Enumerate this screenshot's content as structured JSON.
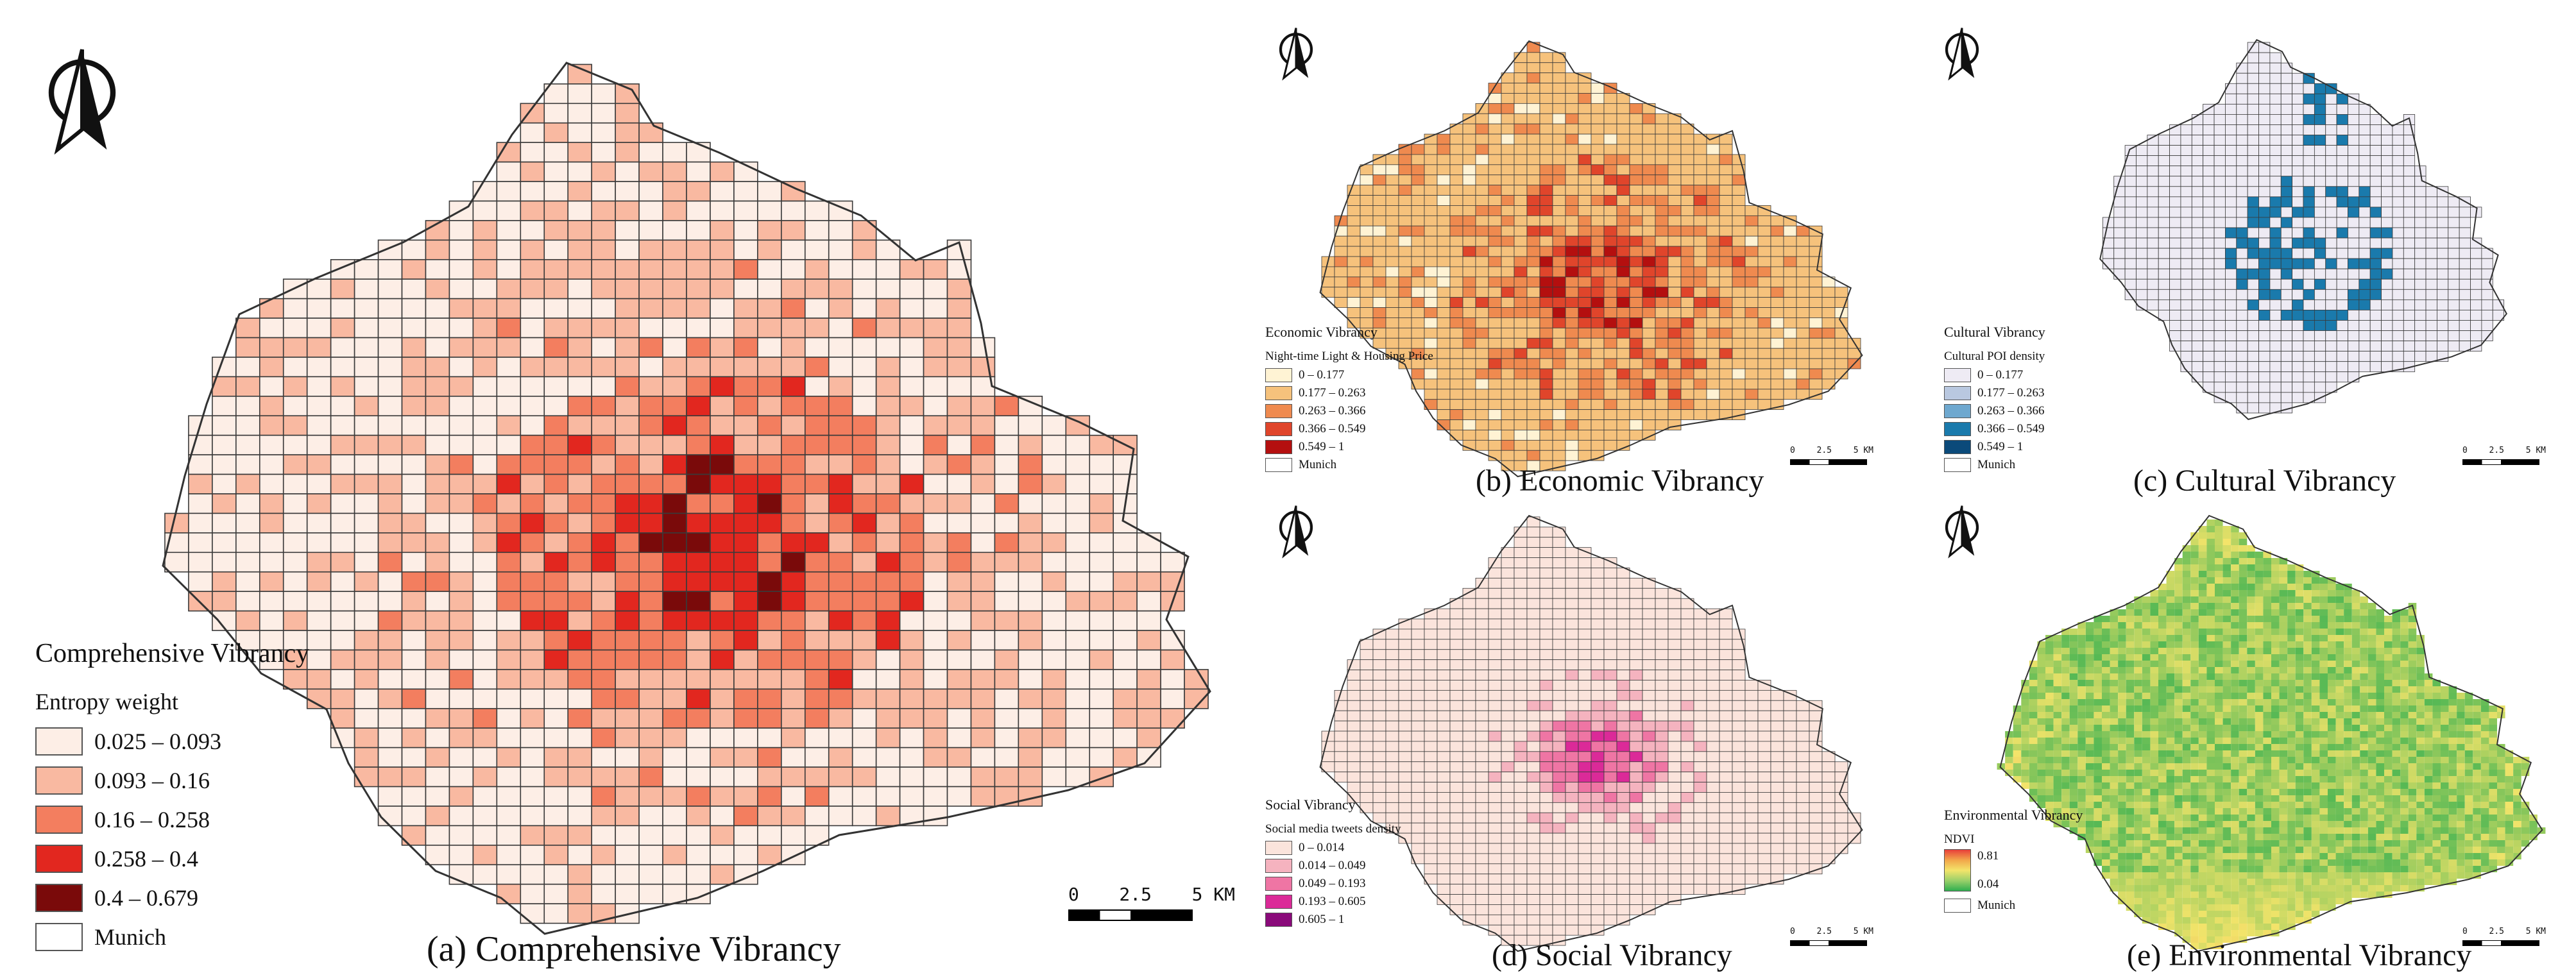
{
  "panels": {
    "a": {
      "caption": "(a) Comprehensive Vibrancy",
      "legend_title": "Comprehensive Vibrancy",
      "legend_subtitle": "Entropy weight",
      "classes": [
        {
          "label": "0.025 – 0.093",
          "color": "#fdeee6"
        },
        {
          "label": "0.093 – 0.16",
          "color": "#f9b9a1"
        },
        {
          "label": "0.16 – 0.258",
          "color": "#f37e5f"
        },
        {
          "label": "0.258 – 0.4",
          "color": "#e2271f"
        },
        {
          "label": "0.4 – 0.679",
          "color": "#7a0a0a"
        },
        {
          "label": "Munich",
          "color": "#ffffff"
        }
      ],
      "scale": {
        "ticks": [
          "0",
          "2.5",
          "5 KM"
        ]
      }
    },
    "b": {
      "caption": "(b) Economic Vibrancy",
      "legend_title": "Economic Vibrancy",
      "legend_subtitle": "Night-time Light & Housing Price",
      "classes": [
        {
          "label": "0 – 0.177",
          "color": "#fff3d4"
        },
        {
          "label": "0.177 – 0.263",
          "color": "#f6c27c"
        },
        {
          "label": "0.263 – 0.366",
          "color": "#ef8a4f"
        },
        {
          "label": "0.366 – 0.549",
          "color": "#e0452b"
        },
        {
          "label": "0.549 – 1",
          "color": "#b40f0f"
        },
        {
          "label": "Munich",
          "color": "#ffffff"
        }
      ],
      "scale": {
        "ticks": [
          "0",
          "2.5",
          "5 KM"
        ]
      }
    },
    "c": {
      "caption": "(c) Cultural Vibrancy",
      "legend_title": "Cultural Vibrancy",
      "legend_subtitle": "Cultural POI density",
      "classes": [
        {
          "label": "0 – 0.177",
          "color": "#eeebf4"
        },
        {
          "label": "0.177 – 0.263",
          "color": "#b9c8e0"
        },
        {
          "label": "0.263 – 0.366",
          "color": "#6ea8cf"
        },
        {
          "label": "0.366 – 0.549",
          "color": "#1a7aac"
        },
        {
          "label": "0.549 – 1",
          "color": "#0b4a7a"
        },
        {
          "label": "Munich",
          "color": "#ffffff"
        }
      ],
      "scale": {
        "ticks": [
          "0",
          "2.5",
          "5 KM"
        ]
      }
    },
    "d": {
      "caption": "(d) Social Vibrancy",
      "legend_title": "Social Vibrancy",
      "legend_subtitle": "Social media tweets density",
      "classes": [
        {
          "label": "0 – 0.014",
          "color": "#fbe4dc"
        },
        {
          "label": "0.014 – 0.049",
          "color": "#f5b3bf"
        },
        {
          "label": "0.049 – 0.193",
          "color": "#ef75a4"
        },
        {
          "label": "0.193 – 0.605",
          "color": "#db2a98"
        },
        {
          "label": "0.605 – 1",
          "color": "#8a0a7a"
        }
      ],
      "scale": {
        "ticks": [
          "0",
          "2.5",
          "5 KM"
        ]
      }
    },
    "e": {
      "caption": "(e) Environmental Vibrancy",
      "legend_title": "Environmental Vibrancy",
      "legend_subtitle": "NDVI",
      "ramp_max": "0.81",
      "ramp_min": "0.04",
      "munich_label": "Munich",
      "scale": {
        "ticks": [
          "0",
          "2.5",
          "5 KM"
        ]
      }
    }
  },
  "colors": {
    "boundary": "#333333",
    "grid": "#3a3a3a",
    "cultural_base": "#eeebf4",
    "cultural_hot": "#1a7aac",
    "social_base": "#fbe4dc",
    "env_low": "#e8403a",
    "env_mid": "#f3e46a",
    "env_high": "#2fae4f"
  },
  "icons": [
    "north-arrow-icon"
  ]
}
